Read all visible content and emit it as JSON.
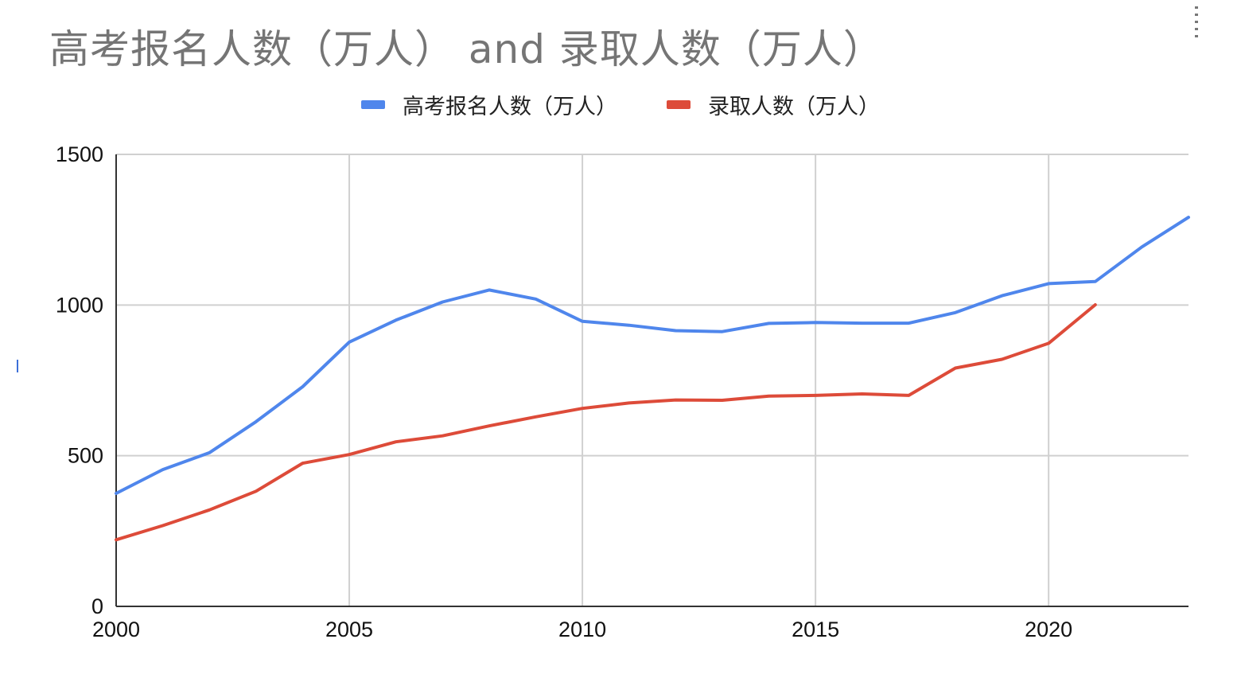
{
  "chart_data": {
    "type": "line",
    "title": "高考报名人数（万人） and 录取人数（万人）",
    "xlabel": "",
    "ylabel": "",
    "xlim": [
      2000,
      2023
    ],
    "ylim": [
      0,
      1500
    ],
    "x_ticks": [
      2000,
      2005,
      2010,
      2015,
      2020
    ],
    "y_ticks": [
      0,
      500,
      1000,
      1500
    ],
    "grid": true,
    "legend_position": "top-center",
    "series": [
      {
        "name": "高考报名人数（万人）",
        "color": "#4f86ec",
        "points": [
          [
            2000,
            375
          ],
          [
            2001,
            454
          ],
          [
            2002,
            510
          ],
          [
            2003,
            613
          ],
          [
            2004,
            729
          ],
          [
            2005,
            877
          ],
          [
            2006,
            950
          ],
          [
            2007,
            1010
          ],
          [
            2008,
            1050
          ],
          [
            2009,
            1020
          ],
          [
            2010,
            946
          ],
          [
            2011,
            933
          ],
          [
            2012,
            915
          ],
          [
            2013,
            912
          ],
          [
            2014,
            939
          ],
          [
            2015,
            942
          ],
          [
            2016,
            940
          ],
          [
            2017,
            940
          ],
          [
            2018,
            975
          ],
          [
            2019,
            1031
          ],
          [
            2020,
            1071
          ],
          [
            2021,
            1078
          ],
          [
            2022,
            1193
          ],
          [
            2023,
            1291
          ]
        ]
      },
      {
        "name": "录取人数（万人）",
        "color": "#dd4b39",
        "points": [
          [
            2000,
            221
          ],
          [
            2001,
            268
          ],
          [
            2002,
            320
          ],
          [
            2003,
            382
          ],
          [
            2004,
            475
          ],
          [
            2005,
            504
          ],
          [
            2006,
            546
          ],
          [
            2007,
            566
          ],
          [
            2008,
            599
          ],
          [
            2009,
            629
          ],
          [
            2010,
            657
          ],
          [
            2011,
            675
          ],
          [
            2012,
            685
          ],
          [
            2013,
            684
          ],
          [
            2014,
            698
          ],
          [
            2015,
            700
          ],
          [
            2016,
            705
          ],
          [
            2017,
            700
          ],
          [
            2018,
            791
          ],
          [
            2019,
            820
          ],
          [
            2020,
            873
          ],
          [
            2021,
            1001
          ]
        ]
      }
    ]
  }
}
